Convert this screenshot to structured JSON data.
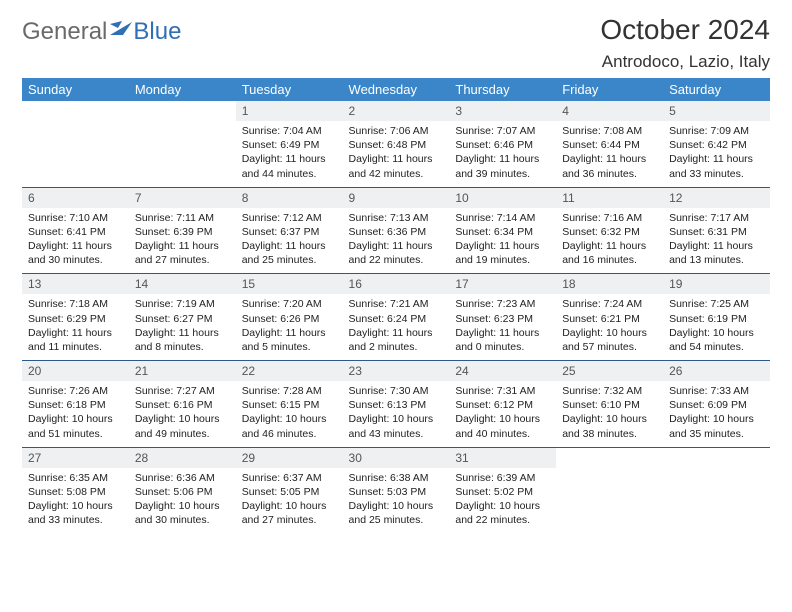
{
  "logo": {
    "part1": "General",
    "part2": "Blue",
    "flag_color": "#2f6fb3"
  },
  "title": "October 2024",
  "location": "Antrodoco, Lazio, Italy",
  "day_headers": [
    "Sunday",
    "Monday",
    "Tuesday",
    "Wednesday",
    "Thursday",
    "Friday",
    "Saturday"
  ],
  "colors": {
    "header_bg": "#3a86c8",
    "header_text": "#ffffff",
    "date_bg": "#eef0f2",
    "border": "#2b5a8a",
    "logo_gray": "#6a6a6a",
    "logo_blue": "#2f6fb3"
  },
  "weeks": [
    [
      null,
      null,
      {
        "d": "1",
        "sr": "7:04 AM",
        "ss": "6:49 PM",
        "dl": "11 hours and 44 minutes."
      },
      {
        "d": "2",
        "sr": "7:06 AM",
        "ss": "6:48 PM",
        "dl": "11 hours and 42 minutes."
      },
      {
        "d": "3",
        "sr": "7:07 AM",
        "ss": "6:46 PM",
        "dl": "11 hours and 39 minutes."
      },
      {
        "d": "4",
        "sr": "7:08 AM",
        "ss": "6:44 PM",
        "dl": "11 hours and 36 minutes."
      },
      {
        "d": "5",
        "sr": "7:09 AM",
        "ss": "6:42 PM",
        "dl": "11 hours and 33 minutes."
      }
    ],
    [
      {
        "d": "6",
        "sr": "7:10 AM",
        "ss": "6:41 PM",
        "dl": "11 hours and 30 minutes."
      },
      {
        "d": "7",
        "sr": "7:11 AM",
        "ss": "6:39 PM",
        "dl": "11 hours and 27 minutes."
      },
      {
        "d": "8",
        "sr": "7:12 AM",
        "ss": "6:37 PM",
        "dl": "11 hours and 25 minutes."
      },
      {
        "d": "9",
        "sr": "7:13 AM",
        "ss": "6:36 PM",
        "dl": "11 hours and 22 minutes."
      },
      {
        "d": "10",
        "sr": "7:14 AM",
        "ss": "6:34 PM",
        "dl": "11 hours and 19 minutes."
      },
      {
        "d": "11",
        "sr": "7:16 AM",
        "ss": "6:32 PM",
        "dl": "11 hours and 16 minutes."
      },
      {
        "d": "12",
        "sr": "7:17 AM",
        "ss": "6:31 PM",
        "dl": "11 hours and 13 minutes."
      }
    ],
    [
      {
        "d": "13",
        "sr": "7:18 AM",
        "ss": "6:29 PM",
        "dl": "11 hours and 11 minutes."
      },
      {
        "d": "14",
        "sr": "7:19 AM",
        "ss": "6:27 PM",
        "dl": "11 hours and 8 minutes."
      },
      {
        "d": "15",
        "sr": "7:20 AM",
        "ss": "6:26 PM",
        "dl": "11 hours and 5 minutes."
      },
      {
        "d": "16",
        "sr": "7:21 AM",
        "ss": "6:24 PM",
        "dl": "11 hours and 2 minutes."
      },
      {
        "d": "17",
        "sr": "7:23 AM",
        "ss": "6:23 PM",
        "dl": "11 hours and 0 minutes."
      },
      {
        "d": "18",
        "sr": "7:24 AM",
        "ss": "6:21 PM",
        "dl": "10 hours and 57 minutes."
      },
      {
        "d": "19",
        "sr": "7:25 AM",
        "ss": "6:19 PM",
        "dl": "10 hours and 54 minutes."
      }
    ],
    [
      {
        "d": "20",
        "sr": "7:26 AM",
        "ss": "6:18 PM",
        "dl": "10 hours and 51 minutes."
      },
      {
        "d": "21",
        "sr": "7:27 AM",
        "ss": "6:16 PM",
        "dl": "10 hours and 49 minutes."
      },
      {
        "d": "22",
        "sr": "7:28 AM",
        "ss": "6:15 PM",
        "dl": "10 hours and 46 minutes."
      },
      {
        "d": "23",
        "sr": "7:30 AM",
        "ss": "6:13 PM",
        "dl": "10 hours and 43 minutes."
      },
      {
        "d": "24",
        "sr": "7:31 AM",
        "ss": "6:12 PM",
        "dl": "10 hours and 40 minutes."
      },
      {
        "d": "25",
        "sr": "7:32 AM",
        "ss": "6:10 PM",
        "dl": "10 hours and 38 minutes."
      },
      {
        "d": "26",
        "sr": "7:33 AM",
        "ss": "6:09 PM",
        "dl": "10 hours and 35 minutes."
      }
    ],
    [
      {
        "d": "27",
        "sr": "6:35 AM",
        "ss": "5:08 PM",
        "dl": "10 hours and 33 minutes."
      },
      {
        "d": "28",
        "sr": "6:36 AM",
        "ss": "5:06 PM",
        "dl": "10 hours and 30 minutes."
      },
      {
        "d": "29",
        "sr": "6:37 AM",
        "ss": "5:05 PM",
        "dl": "10 hours and 27 minutes."
      },
      {
        "d": "30",
        "sr": "6:38 AM",
        "ss": "5:03 PM",
        "dl": "10 hours and 25 minutes."
      },
      {
        "d": "31",
        "sr": "6:39 AM",
        "ss": "5:02 PM",
        "dl": "10 hours and 22 minutes."
      },
      null,
      null
    ]
  ]
}
